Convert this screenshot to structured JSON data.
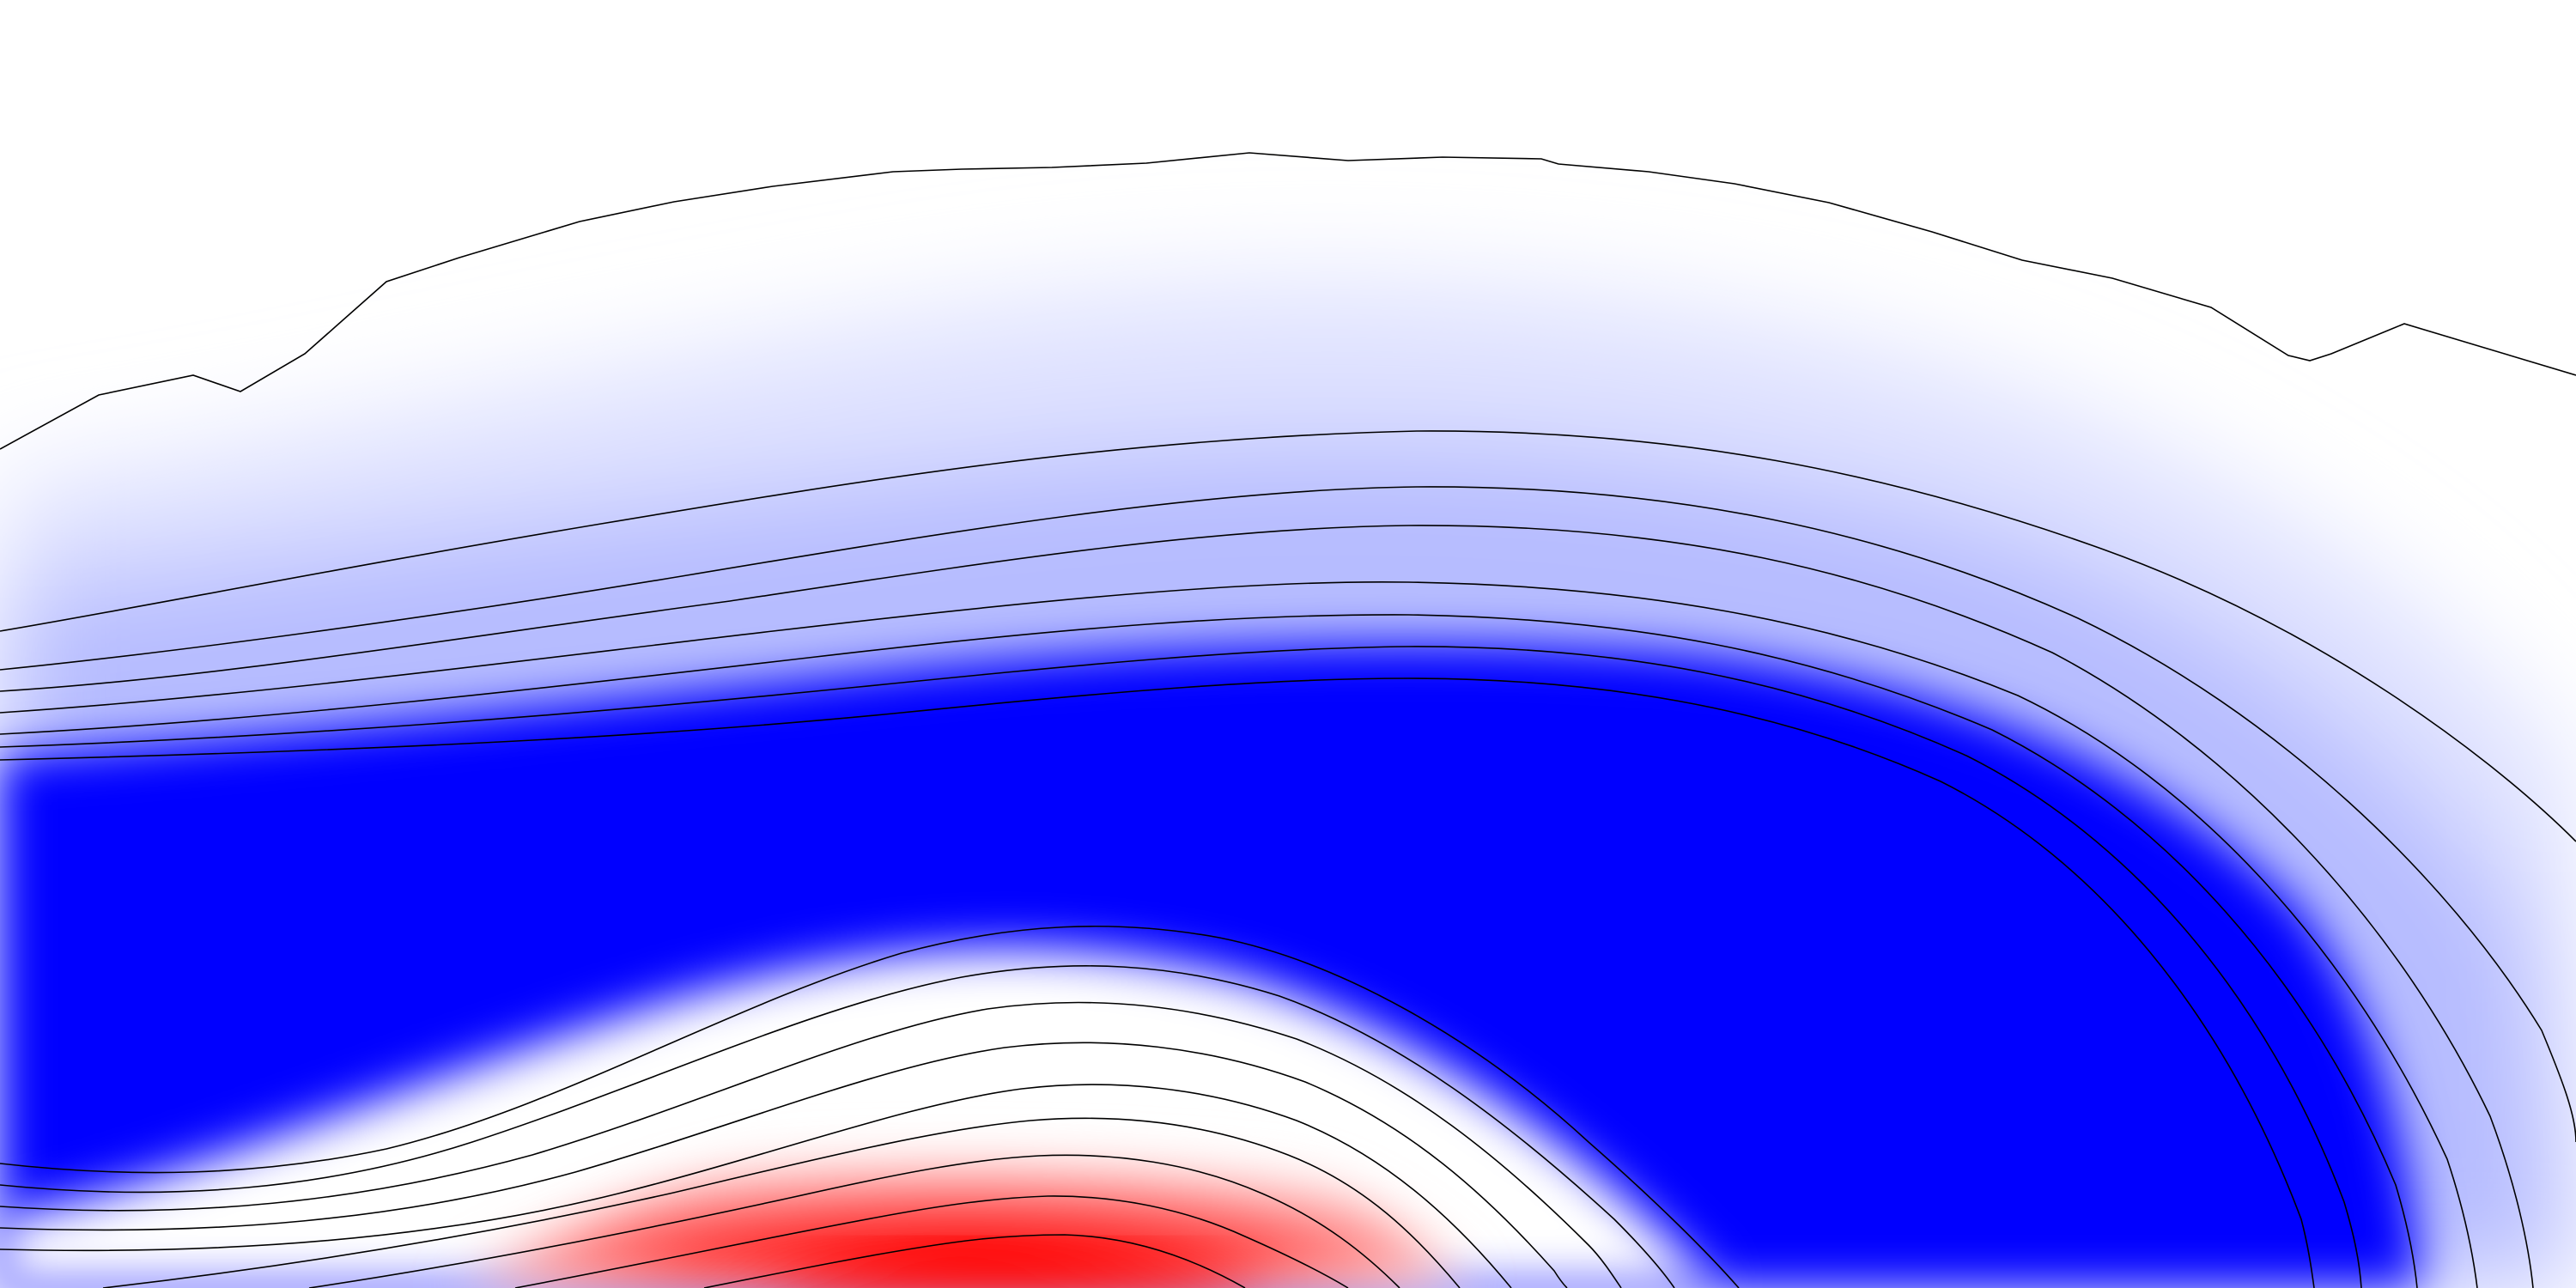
{
  "chart_data": {
    "type": "heatmap",
    "title": "",
    "xlabel": "",
    "ylabel": "",
    "colormap": {
      "name": "blue-white-red",
      "low": "#0000ff",
      "mid": "#ffffff",
      "high": "#ff0000",
      "range": [
        -1,
        1
      ]
    },
    "contours": {
      "color": "#000000",
      "levels": [
        -0.9,
        -0.8,
        -0.7,
        -0.6,
        -0.5,
        -0.4,
        -0.3,
        -0.2,
        -0.1,
        0.0,
        0.1,
        0.2,
        0.3,
        0.4,
        0.5,
        0.6,
        0.7,
        0.8,
        0.9
      ]
    },
    "field": {
      "blue_core_value": -1.0,
      "red_core_value": 0.85,
      "background_value": 0.0
    },
    "grid": false,
    "legend": "none"
  }
}
